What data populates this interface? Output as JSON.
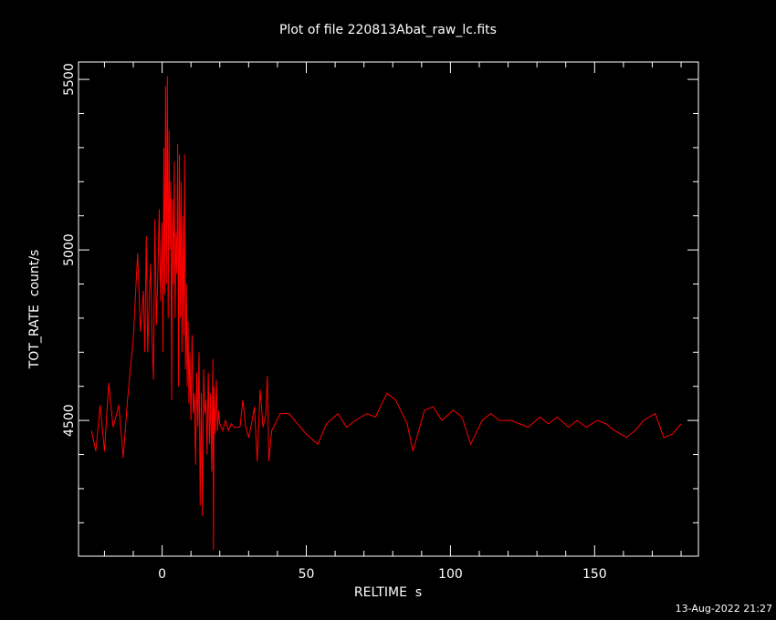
{
  "chart_data": {
    "type": "line",
    "title": "Plot of file 220813Abat_raw_lc.fits",
    "x_label": "RELTIME  s",
    "y_label": "TOT_RATE  count/s",
    "footer": "13-Aug-2022 21:27",
    "xlim": [
      -29,
      186
    ],
    "ylim": [
      4102,
      5551
    ],
    "xticks": [
      0,
      50,
      100,
      150
    ],
    "xminorticks": [
      -20,
      -10,
      10,
      20,
      30,
      40,
      60,
      70,
      80,
      90,
      110,
      120,
      130,
      140,
      160,
      170,
      180
    ],
    "yticks": [
      4500,
      5000,
      5500
    ],
    "yminorticks": [
      4200,
      4300,
      4400,
      4600,
      4700,
      4800,
      4900,
      5100,
      5200,
      5300,
      5400
    ],
    "x": [
      -24.5,
      -23,
      -21.5,
      -20,
      -18.5,
      -17,
      -15,
      -13.5,
      -12,
      -10,
      -8.5,
      -7.5,
      -6.5,
      -6,
      -5.5,
      -5,
      -4.5,
      -4,
      -3.5,
      -3,
      -2.5,
      -2,
      -1.5,
      -1,
      -0.5,
      0,
      0.3,
      0.6,
      0.9,
      1.2,
      1.5,
      1.8,
      2.1,
      2.4,
      2.7,
      3,
      3.3,
      3.6,
      3.9,
      4.2,
      4.5,
      4.8,
      5.1,
      5.4,
      5.7,
      6,
      6.3,
      6.6,
      6.9,
      7.2,
      7.5,
      7.8,
      8.1,
      8.4,
      8.7,
      9,
      9.3,
      9.6,
      10,
      10.4,
      10.8,
      11.2,
      11.6,
      12,
      12.4,
      12.8,
      13.2,
      13.6,
      14,
      14.4,
      14.8,
      15.2,
      15.6,
      16,
      16.4,
      16.8,
      17.2,
      17.6,
      17.8,
      18,
      18.4,
      18.8,
      19.2,
      19.6,
      20,
      21,
      22,
      23,
      24,
      25,
      26,
      27,
      28,
      29,
      30,
      31,
      32,
      33,
      34,
      35,
      36,
      36.5,
      37,
      38,
      41,
      44,
      50,
      54,
      57,
      61,
      64,
      67,
      71,
      74,
      78,
      81,
      85,
      87,
      91,
      94,
      97,
      101,
      104,
      107,
      111,
      114,
      117,
      121,
      124,
      127,
      131,
      134,
      137,
      141,
      144,
      147,
      151,
      154,
      157,
      161,
      164,
      167,
      171,
      174,
      177,
      180
    ],
    "series": [
      {
        "color": "#ff0000",
        "values": [
          4470,
          4410,
          4545,
          4410,
          4610,
          4480,
          4545,
          4390,
          4560,
          4740,
          4990,
          4760,
          4880,
          4700,
          5040,
          4700,
          4850,
          4960,
          4750,
          4620,
          5090,
          4780,
          4920,
          5120,
          4850,
          5080,
          4700,
          5300,
          4870,
          5480,
          4900,
          5510,
          4800,
          5350,
          5000,
          5200,
          4560,
          5150,
          4900,
          5260,
          4800,
          5050,
          4930,
          5310,
          4600,
          5280,
          4800,
          5200,
          4700,
          5100,
          4750,
          5280,
          4650,
          4900,
          4600,
          4790,
          4550,
          4700,
          4500,
          4750,
          4520,
          4580,
          4370,
          4640,
          4480,
          4700,
          4250,
          4580,
          4220,
          4650,
          4520,
          4560,
          4400,
          4640,
          4430,
          4580,
          4350,
          4680,
          4120,
          4600,
          4460,
          4620,
          4470,
          4530,
          4490,
          4470,
          4500,
          4470,
          4490,
          4480,
          4480,
          4480,
          4560,
          4480,
          4450,
          4490,
          4540,
          4380,
          4590,
          4480,
          4520,
          4630,
          4380,
          4470,
          4520,
          4520,
          4460,
          4430,
          4490,
          4520,
          4480,
          4500,
          4520,
          4510,
          4580,
          4560,
          4490,
          4410,
          4530,
          4540,
          4500,
          4530,
          4510,
          4430,
          4500,
          4520,
          4500,
          4500,
          4490,
          4480,
          4510,
          4490,
          4510,
          4480,
          4500,
          4480,
          4500,
          4490,
          4470,
          4450,
          4470,
          4500,
          4520,
          4450,
          4460,
          4490
        ]
      }
    ]
  }
}
